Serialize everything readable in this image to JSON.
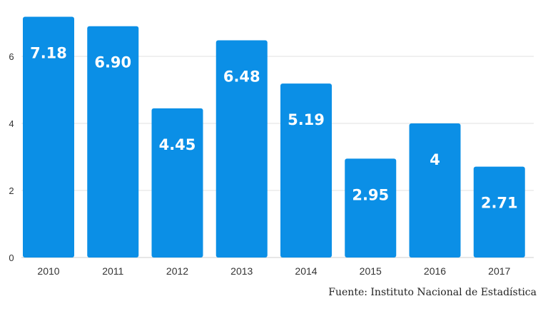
{
  "chart_data": {
    "type": "bar",
    "categories": [
      "2010",
      "2011",
      "2012",
      "2013",
      "2014",
      "2015",
      "2016",
      "2017"
    ],
    "values": [
      7.18,
      6.9,
      4.45,
      6.48,
      5.19,
      2.95,
      4,
      2.71
    ],
    "value_labels": [
      "7.18",
      "6.90",
      "4.45",
      "6.48",
      "5.19",
      "2.95",
      "4",
      "2.71"
    ],
    "yticks": [
      "0",
      "2",
      "4",
      "6"
    ],
    "ylim": [
      0,
      7.2
    ],
    "grid": true,
    "bar_color": "#0b8fe6",
    "source": "Fuente: Instituto Nacional de Estadística"
  }
}
